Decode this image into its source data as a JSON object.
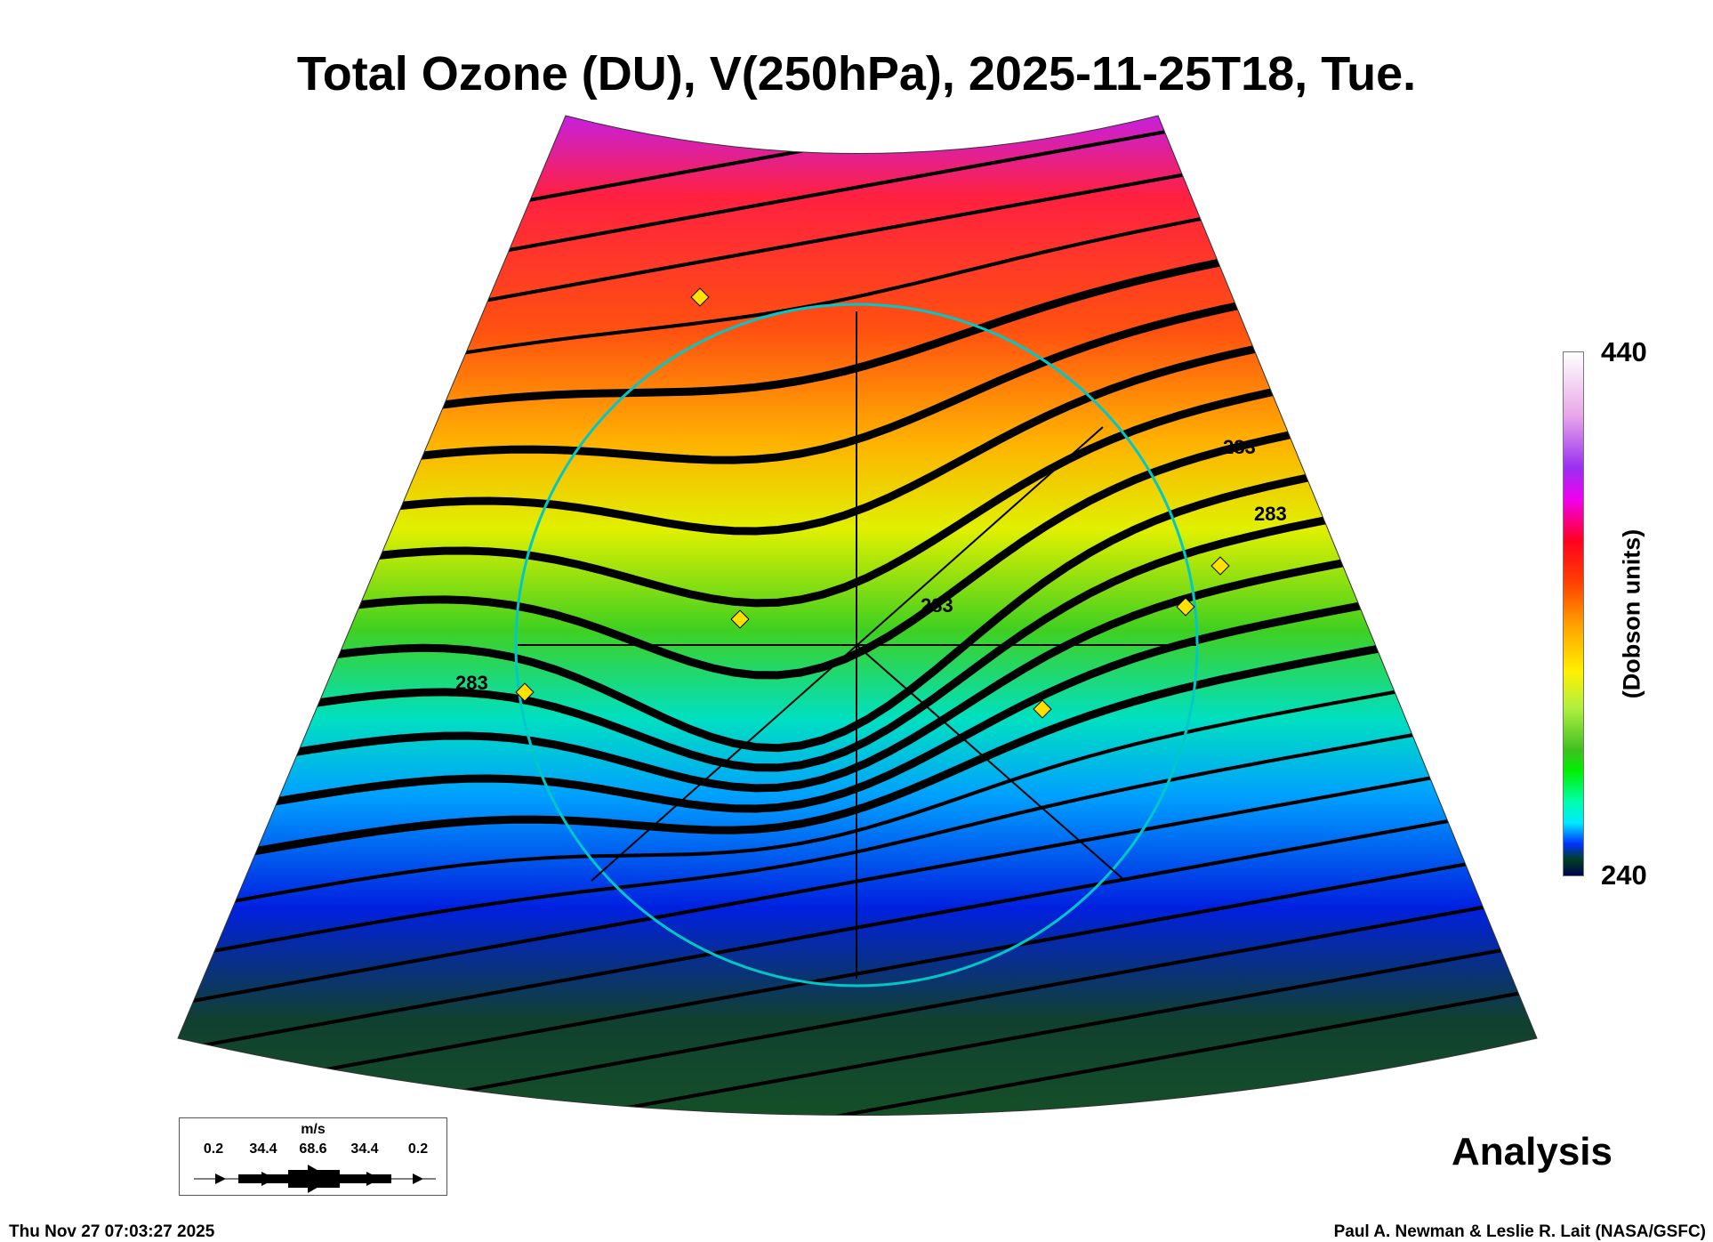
{
  "title": "Total Ozone (DU), V(250hPa), 2025-11-25T18, Tue.",
  "colorbar": {
    "max_label": "440",
    "min_label": "240",
    "unit": "(Dobson units)",
    "min": 240,
    "max": 440
  },
  "contour_labels": [
    "283",
    "283",
    "283",
    "283"
  ],
  "legend": {
    "unit": "m/s",
    "speeds": [
      "0.2",
      "34.4",
      "68.6",
      "34.4",
      "0.2"
    ]
  },
  "analysis_label": "Analysis",
  "footer": {
    "timestamp": "Thu Nov 27 07:03:27 2025",
    "credit": "Paul A. Newman & Leslie R. Lait (NASA/GSFC)"
  },
  "colors": {
    "circle": "#00c8c8",
    "station_marker": "#ffe000"
  }
}
